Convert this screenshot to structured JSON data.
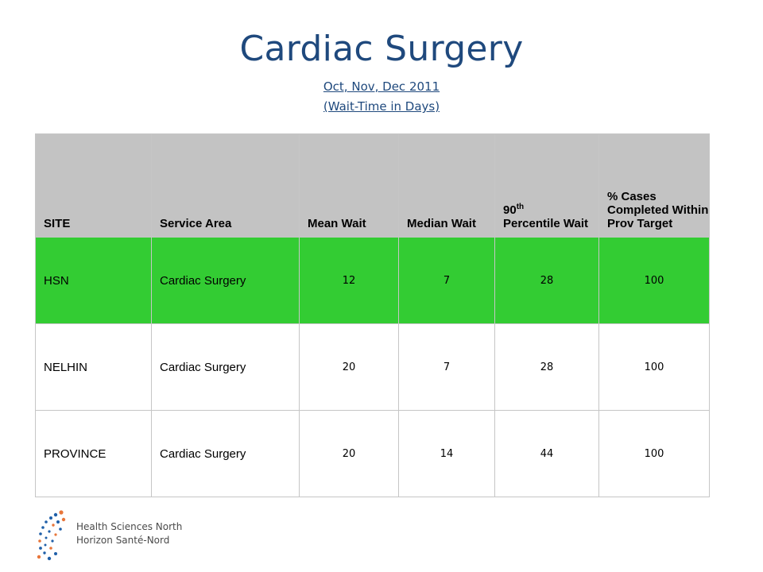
{
  "slide": {
    "title": "Cardiac Surgery",
    "subtitle_period": " Oct, Nov, Dec 2011",
    "subtitle_units": "(Wait-Time in Days)"
  },
  "table": {
    "headers": {
      "site": "SITE",
      "service_area": "Service Area",
      "mean_wait": "Mean Wait",
      "median_wait": "Median Wait",
      "p90_prefix": "90",
      "p90_sup": "th",
      "p90_rest": "Percentile Wait",
      "pct_cases": "% Cases Completed Within Prov Target"
    },
    "rows": [
      {
        "site": "HSN",
        "service_area": "Cardiac Surgery",
        "mean": "12",
        "median": "7",
        "p90": "28",
        "pct": "100"
      },
      {
        "site": "NELHIN",
        "service_area": "Cardiac Surgery",
        "mean": "20",
        "median": "7",
        "p90": "28",
        "pct": "100"
      },
      {
        "site": "PROVINCE",
        "service_area": "Cardiac Surgery",
        "mean": "20",
        "median": "14",
        "p90": "44",
        "pct": "100"
      }
    ],
    "highlight_color": "#33cc33",
    "header_color": "#c3c3c3"
  },
  "logo": {
    "line1": "Health Sciences North",
    "line2": "Horizon Santé-Nord"
  }
}
